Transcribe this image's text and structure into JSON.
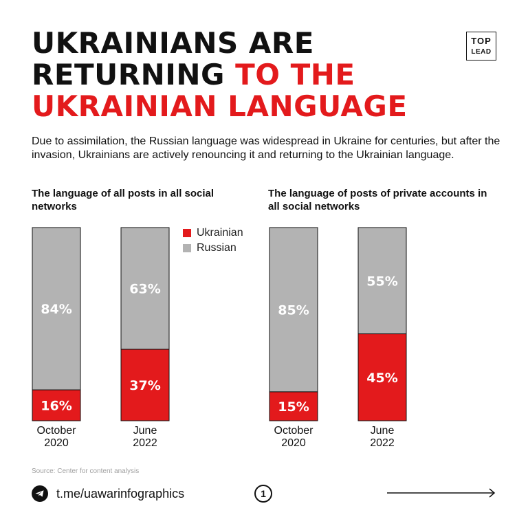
{
  "title": {
    "line1": "UKRAINIANS ARE",
    "line2_black": "RETURNING ",
    "line2_red": "TO THE",
    "line3": "UKRAINIAN LANGUAGE"
  },
  "logo": {
    "top": "TOP",
    "lead": "LEAD"
  },
  "intro": "Due to assimilation, the Russian language was widespread in Ukraine for centuries, but after the invasion, Ukrainians are actively renouncing it and returning to the Ukrainian language.",
  "legend": [
    {
      "label": "Ukrainian",
      "color": "#e31a1c"
    },
    {
      "label": "Russian",
      "color": "#b3b3b3"
    }
  ],
  "colors": {
    "ukrainian": "#e31a1c",
    "russian": "#b3b3b3"
  },
  "chart_data": [
    {
      "type": "bar",
      "stacked": true,
      "title": "The language of all posts in all social networks",
      "categories": [
        "October 2020",
        "June 2022"
      ],
      "series": [
        {
          "name": "Ukrainian",
          "values": [
            16,
            37
          ]
        },
        {
          "name": "Russian",
          "values": [
            84,
            63
          ]
        }
      ],
      "ylim": [
        0,
        100
      ],
      "unit": "%"
    },
    {
      "type": "bar",
      "stacked": true,
      "title": "The language of posts of private accounts in all social networks",
      "categories": [
        "October 2020",
        "June 2022"
      ],
      "series": [
        {
          "name": "Ukrainian",
          "values": [
            15,
            45
          ]
        },
        {
          "name": "Russian",
          "values": [
            85,
            55
          ]
        }
      ],
      "ylim": [
        0,
        100
      ],
      "unit": "%"
    }
  ],
  "category_lines": [
    [
      "October",
      "2020"
    ],
    [
      "June",
      "2022"
    ]
  ],
  "source": "Source: Center for content analysis",
  "footer": {
    "link": "t.me/uawarinfographics",
    "page": "1",
    "telegram_icon": "telegram-icon",
    "arrow_icon": "arrow-right-icon"
  }
}
